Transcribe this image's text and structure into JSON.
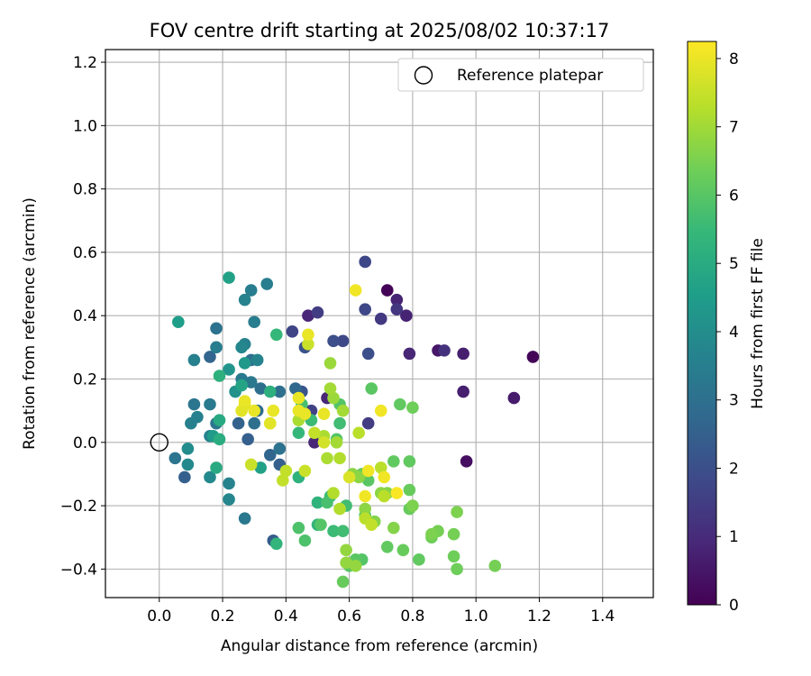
{
  "chart_data": {
    "type": "scatter",
    "title": "FOV centre drift starting at 2025/08/02 10:37:17",
    "xlabel": "Angular distance from reference (arcmin)",
    "ylabel": "Rotation from reference (arcmin)",
    "xlim": [
      -0.17,
      1.56
    ],
    "ylim": [
      -0.49,
      1.24
    ],
    "xticks": [
      "0.0",
      "0.2",
      "0.4",
      "0.6",
      "0.8",
      "1.0",
      "1.2",
      "1.4"
    ],
    "yticks": [
      "−0.4",
      "−0.2",
      "0.0",
      "0.2",
      "0.4",
      "0.6",
      "0.8",
      "1.0",
      "1.2"
    ],
    "grid": true,
    "legend": {
      "position": "top-right",
      "entries": [
        "Reference platepar"
      ]
    },
    "reference_point": {
      "x": 0.0,
      "y": 0.0
    },
    "colorbar": {
      "label": "Hours from first FF file",
      "colormap": "viridis",
      "range": [
        0,
        8.25
      ],
      "ticks": [
        "0",
        "1",
        "2",
        "3",
        "4",
        "5",
        "6",
        "7",
        "8"
      ]
    },
    "points": [
      {
        "x": 0.72,
        "y": 0.48,
        "c": 0.05
      },
      {
        "x": 1.18,
        "y": 0.27,
        "c": 0.1
      },
      {
        "x": 0.97,
        "y": -0.06,
        "c": 0.3
      },
      {
        "x": 1.12,
        "y": 0.14,
        "c": 0.6
      },
      {
        "x": 0.88,
        "y": 0.29,
        "c": 0.5
      },
      {
        "x": 0.96,
        "y": 0.16,
        "c": 0.7
      },
      {
        "x": 0.96,
        "y": 0.28,
        "c": 0.7
      },
      {
        "x": 0.75,
        "y": 0.45,
        "c": 0.8
      },
      {
        "x": 0.78,
        "y": 0.4,
        "c": 0.8
      },
      {
        "x": 0.79,
        "y": 0.28,
        "c": 0.9
      },
      {
        "x": 0.47,
        "y": 0.4,
        "c": 0.9
      },
      {
        "x": 0.49,
        "y": 0.0,
        "c": 0.9
      },
      {
        "x": 0.53,
        "y": 0.14,
        "c": 0.9
      },
      {
        "x": 0.9,
        "y": 0.29,
        "c": 1.2
      },
      {
        "x": 0.75,
        "y": 0.42,
        "c": 1.3
      },
      {
        "x": 0.7,
        "y": 0.39,
        "c": 1.4
      },
      {
        "x": 0.5,
        "y": 0.41,
        "c": 1.5
      },
      {
        "x": 0.66,
        "y": 0.06,
        "c": 1.5
      },
      {
        "x": 0.48,
        "y": 0.1,
        "c": 1.6
      },
      {
        "x": 0.42,
        "y": 0.35,
        "c": 1.7
      },
      {
        "x": 0.65,
        "y": 0.57,
        "c": 1.8
      },
      {
        "x": 0.65,
        "y": 0.42,
        "c": 1.8
      },
      {
        "x": 0.58,
        "y": 0.32,
        "c": 1.8
      },
      {
        "x": 0.55,
        "y": 0.32,
        "c": 2.0
      },
      {
        "x": 0.66,
        "y": 0.28,
        "c": 2.0
      },
      {
        "x": 0.46,
        "y": 0.3,
        "c": 2.1
      },
      {
        "x": 0.45,
        "y": 0.16,
        "c": 2.2
      },
      {
        "x": 0.36,
        "y": -0.31,
        "c": 2.4
      },
      {
        "x": 0.08,
        "y": -0.11,
        "c": 2.5
      },
      {
        "x": 0.28,
        "y": 0.01,
        "c": 2.5
      },
      {
        "x": 0.38,
        "y": -0.07,
        "c": 2.5
      },
      {
        "x": 0.25,
        "y": 0.06,
        "c": 2.6
      },
      {
        "x": 0.16,
        "y": 0.27,
        "c": 2.7
      },
      {
        "x": 0.35,
        "y": -0.04,
        "c": 2.7
      },
      {
        "x": 0.43,
        "y": 0.17,
        "c": 2.8
      },
      {
        "x": 0.31,
        "y": 0.1,
        "c": 2.9
      },
      {
        "x": 0.29,
        "y": 0.26,
        "c": 3.0
      },
      {
        "x": 0.32,
        "y": 0.17,
        "c": 3.0
      },
      {
        "x": 0.3,
        "y": 0.06,
        "c": 3.0
      },
      {
        "x": 0.38,
        "y": 0.16,
        "c": 3.0
      },
      {
        "x": 0.38,
        "y": -0.02,
        "c": 3.1
      },
      {
        "x": 0.18,
        "y": 0.36,
        "c": 3.1
      },
      {
        "x": 0.05,
        "y": -0.05,
        "c": 3.2
      },
      {
        "x": 0.18,
        "y": 0.06,
        "c": 3.2
      },
      {
        "x": 0.11,
        "y": 0.12,
        "c": 3.2
      },
      {
        "x": 0.29,
        "y": 0.19,
        "c": 3.3
      },
      {
        "x": 0.27,
        "y": -0.24,
        "c": 3.3
      },
      {
        "x": 0.26,
        "y": 0.2,
        "c": 3.4
      },
      {
        "x": 0.16,
        "y": 0.12,
        "c": 3.4
      },
      {
        "x": 0.18,
        "y": 0.3,
        "c": 3.5
      },
      {
        "x": 0.3,
        "y": 0.38,
        "c": 3.5
      },
      {
        "x": 0.34,
        "y": 0.5,
        "c": 3.5
      },
      {
        "x": 0.29,
        "y": 0.48,
        "c": 3.5
      },
      {
        "x": 0.27,
        "y": 0.31,
        "c": 3.6
      },
      {
        "x": 0.16,
        "y": 0.02,
        "c": 3.6
      },
      {
        "x": 0.12,
        "y": 0.08,
        "c": 3.6
      },
      {
        "x": 0.1,
        "y": 0.06,
        "c": 3.6
      },
      {
        "x": 0.11,
        "y": 0.26,
        "c": 3.6
      },
      {
        "x": 0.27,
        "y": 0.45,
        "c": 3.7
      },
      {
        "x": 0.31,
        "y": 0.26,
        "c": 3.7
      },
      {
        "x": 0.22,
        "y": -0.13,
        "c": 3.7
      },
      {
        "x": 0.22,
        "y": -0.18,
        "c": 3.8
      },
      {
        "x": 0.26,
        "y": 0.3,
        "c": 3.8
      },
      {
        "x": 0.16,
        "y": -0.11,
        "c": 3.9
      },
      {
        "x": 0.09,
        "y": -0.07,
        "c": 3.9
      },
      {
        "x": 0.09,
        "y": -0.02,
        "c": 4.0
      },
      {
        "x": 0.24,
        "y": 0.16,
        "c": 4.2
      },
      {
        "x": 0.22,
        "y": 0.23,
        "c": 4.3
      },
      {
        "x": 0.27,
        "y": 0.25,
        "c": 4.4
      },
      {
        "x": 0.17,
        "y": 0.02,
        "c": 4.5
      },
      {
        "x": 0.06,
        "y": 0.38,
        "c": 4.6
      },
      {
        "x": 0.22,
        "y": 0.52,
        "c": 4.7
      },
      {
        "x": 0.32,
        "y": -0.08,
        "c": 4.7
      },
      {
        "x": 0.26,
        "y": 0.18,
        "c": 4.8
      },
      {
        "x": 0.18,
        "y": -0.08,
        "c": 5.0
      },
      {
        "x": 0.19,
        "y": 0.07,
        "c": 5.0
      },
      {
        "x": 0.19,
        "y": 0.01,
        "c": 5.1
      },
      {
        "x": 0.19,
        "y": 0.21,
        "c": 5.2
      },
      {
        "x": 0.35,
        "y": 0.16,
        "c": 5.2
      },
      {
        "x": 0.44,
        "y": -0.11,
        "c": 5.3
      },
      {
        "x": 0.5,
        "y": -0.19,
        "c": 5.3
      },
      {
        "x": 0.5,
        "y": -0.26,
        "c": 5.4
      },
      {
        "x": 0.37,
        "y": -0.32,
        "c": 5.4
      },
      {
        "x": 0.44,
        "y": 0.03,
        "c": 5.5
      },
      {
        "x": 0.37,
        "y": 0.34,
        "c": 5.5
      },
      {
        "x": 0.48,
        "y": 0.07,
        "c": 5.6
      },
      {
        "x": 0.54,
        "y": -0.17,
        "c": 5.6
      },
      {
        "x": 0.55,
        "y": -0.28,
        "c": 5.6
      },
      {
        "x": 0.58,
        "y": -0.28,
        "c": 5.7
      },
      {
        "x": 0.57,
        "y": 0.06,
        "c": 5.7
      },
      {
        "x": 0.59,
        "y": -0.2,
        "c": 5.7
      },
      {
        "x": 0.53,
        "y": -0.19,
        "c": 5.8
      },
      {
        "x": 0.45,
        "y": 0.12,
        "c": 5.8
      },
      {
        "x": 0.46,
        "y": -0.31,
        "c": 5.9
      },
      {
        "x": 0.44,
        "y": -0.27,
        "c": 5.9
      },
      {
        "x": 0.51,
        "y": -0.26,
        "c": 6.0
      },
      {
        "x": 0.56,
        "y": 0.01,
        "c": 6.0
      },
      {
        "x": 0.57,
        "y": 0.12,
        "c": 6.0
      },
      {
        "x": 0.64,
        "y": -0.37,
        "c": 6.0
      },
      {
        "x": 0.65,
        "y": -0.23,
        "c": 6.0
      },
      {
        "x": 0.66,
        "y": -0.12,
        "c": 6.1
      },
      {
        "x": 0.6,
        "y": -0.39,
        "c": 6.1
      },
      {
        "x": 0.62,
        "y": -0.37,
        "c": 6.1
      },
      {
        "x": 0.67,
        "y": 0.17,
        "c": 6.1
      },
      {
        "x": 0.72,
        "y": -0.33,
        "c": 6.2
      },
      {
        "x": 0.76,
        "y": 0.12,
        "c": 6.2
      },
      {
        "x": 0.74,
        "y": -0.06,
        "c": 6.2
      },
      {
        "x": 0.79,
        "y": -0.06,
        "c": 6.2
      },
      {
        "x": 0.82,
        "y": -0.37,
        "c": 6.2
      },
      {
        "x": 0.77,
        "y": -0.34,
        "c": 6.3
      },
      {
        "x": 0.79,
        "y": -0.21,
        "c": 6.3
      },
      {
        "x": 0.79,
        "y": -0.15,
        "c": 6.3
      },
      {
        "x": 0.58,
        "y": -0.44,
        "c": 6.3
      },
      {
        "x": 0.64,
        "y": -0.1,
        "c": 6.3
      },
      {
        "x": 0.8,
        "y": 0.11,
        "c": 6.4
      },
      {
        "x": 0.86,
        "y": -0.3,
        "c": 6.4
      },
      {
        "x": 0.93,
        "y": -0.36,
        "c": 6.4
      },
      {
        "x": 0.94,
        "y": -0.4,
        "c": 6.4
      },
      {
        "x": 1.06,
        "y": -0.39,
        "c": 6.5
      },
      {
        "x": 0.93,
        "y": -0.29,
        "c": 6.5
      },
      {
        "x": 0.88,
        "y": -0.28,
        "c": 6.5
      },
      {
        "x": 0.86,
        "y": -0.29,
        "c": 6.6
      },
      {
        "x": 0.94,
        "y": -0.22,
        "c": 6.6
      },
      {
        "x": 0.8,
        "y": -0.2,
        "c": 6.6
      },
      {
        "x": 0.72,
        "y": -0.16,
        "c": 6.7
      },
      {
        "x": 0.74,
        "y": -0.27,
        "c": 6.7
      },
      {
        "x": 0.68,
        "y": -0.25,
        "c": 6.7
      },
      {
        "x": 0.61,
        "y": -0.1,
        "c": 6.8
      },
      {
        "x": 0.63,
        "y": -0.11,
        "c": 6.8
      },
      {
        "x": 0.65,
        "y": -0.21,
        "c": 6.8
      },
      {
        "x": 0.7,
        "y": -0.16,
        "c": 6.8
      },
      {
        "x": 0.59,
        "y": -0.34,
        "c": 6.9
      },
      {
        "x": 0.59,
        "y": -0.38,
        "c": 6.9
      },
      {
        "x": 0.62,
        "y": -0.39,
        "c": 6.9
      },
      {
        "x": 0.54,
        "y": 0.25,
        "c": 7.0
      },
      {
        "x": 0.55,
        "y": 0.14,
        "c": 7.0
      },
      {
        "x": 0.54,
        "y": 0.17,
        "c": 7.1
      },
      {
        "x": 0.58,
        "y": 0.1,
        "c": 7.1
      },
      {
        "x": 0.56,
        "y": 0.0,
        "c": 7.1
      },
      {
        "x": 0.53,
        "y": -0.05,
        "c": 7.2
      },
      {
        "x": 0.44,
        "y": 0.07,
        "c": 7.2
      },
      {
        "x": 0.52,
        "y": 0.02,
        "c": 7.2
      },
      {
        "x": 0.57,
        "y": -0.05,
        "c": 7.3
      },
      {
        "x": 0.55,
        "y": -0.16,
        "c": 7.3
      },
      {
        "x": 0.57,
        "y": -0.21,
        "c": 7.3
      },
      {
        "x": 0.65,
        "y": -0.24,
        "c": 7.4
      },
      {
        "x": 0.63,
        "y": 0.03,
        "c": 7.4
      },
      {
        "x": 0.7,
        "y": -0.08,
        "c": 7.4
      },
      {
        "x": 0.71,
        "y": -0.17,
        "c": 7.4
      },
      {
        "x": 0.67,
        "y": -0.26,
        "c": 7.5
      },
      {
        "x": 0.49,
        "y": 0.03,
        "c": 7.5
      },
      {
        "x": 0.4,
        "y": -0.09,
        "c": 7.5
      },
      {
        "x": 0.39,
        "y": -0.12,
        "c": 7.5
      },
      {
        "x": 0.29,
        "y": -0.07,
        "c": 7.6
      },
      {
        "x": 0.46,
        "y": -0.09,
        "c": 7.6
      },
      {
        "x": 0.47,
        "y": 0.31,
        "c": 7.6
      },
      {
        "x": 0.52,
        "y": 0.0,
        "c": 7.7
      },
      {
        "x": 0.6,
        "y": -0.11,
        "c": 7.8
      },
      {
        "x": 0.35,
        "y": 0.06,
        "c": 7.8
      },
      {
        "x": 0.26,
        "y": 0.1,
        "c": 7.9
      },
      {
        "x": 0.27,
        "y": 0.12,
        "c": 7.9
      },
      {
        "x": 0.3,
        "y": 0.1,
        "c": 8.0
      },
      {
        "x": 0.36,
        "y": 0.1,
        "c": 8.0
      },
      {
        "x": 0.44,
        "y": 0.14,
        "c": 8.0
      },
      {
        "x": 0.44,
        "y": 0.1,
        "c": 8.0
      },
      {
        "x": 0.46,
        "y": 0.09,
        "c": 8.0
      },
      {
        "x": 0.47,
        "y": 0.34,
        "c": 8.0
      },
      {
        "x": 0.52,
        "y": 0.09,
        "c": 8.0
      },
      {
        "x": 0.62,
        "y": 0.48,
        "c": 8.1
      },
      {
        "x": 0.65,
        "y": -0.17,
        "c": 8.1
      },
      {
        "x": 0.66,
        "y": -0.09,
        "c": 8.1
      },
      {
        "x": 0.7,
        "y": 0.1,
        "c": 8.1
      },
      {
        "x": 0.71,
        "y": -0.11,
        "c": 8.1
      },
      {
        "x": 0.75,
        "y": -0.16,
        "c": 8.2
      },
      {
        "x": 0.27,
        "y": 0.13,
        "c": 8.0
      },
      {
        "x": 0.35,
        "y": 0.06,
        "c": 7.9
      }
    ]
  }
}
